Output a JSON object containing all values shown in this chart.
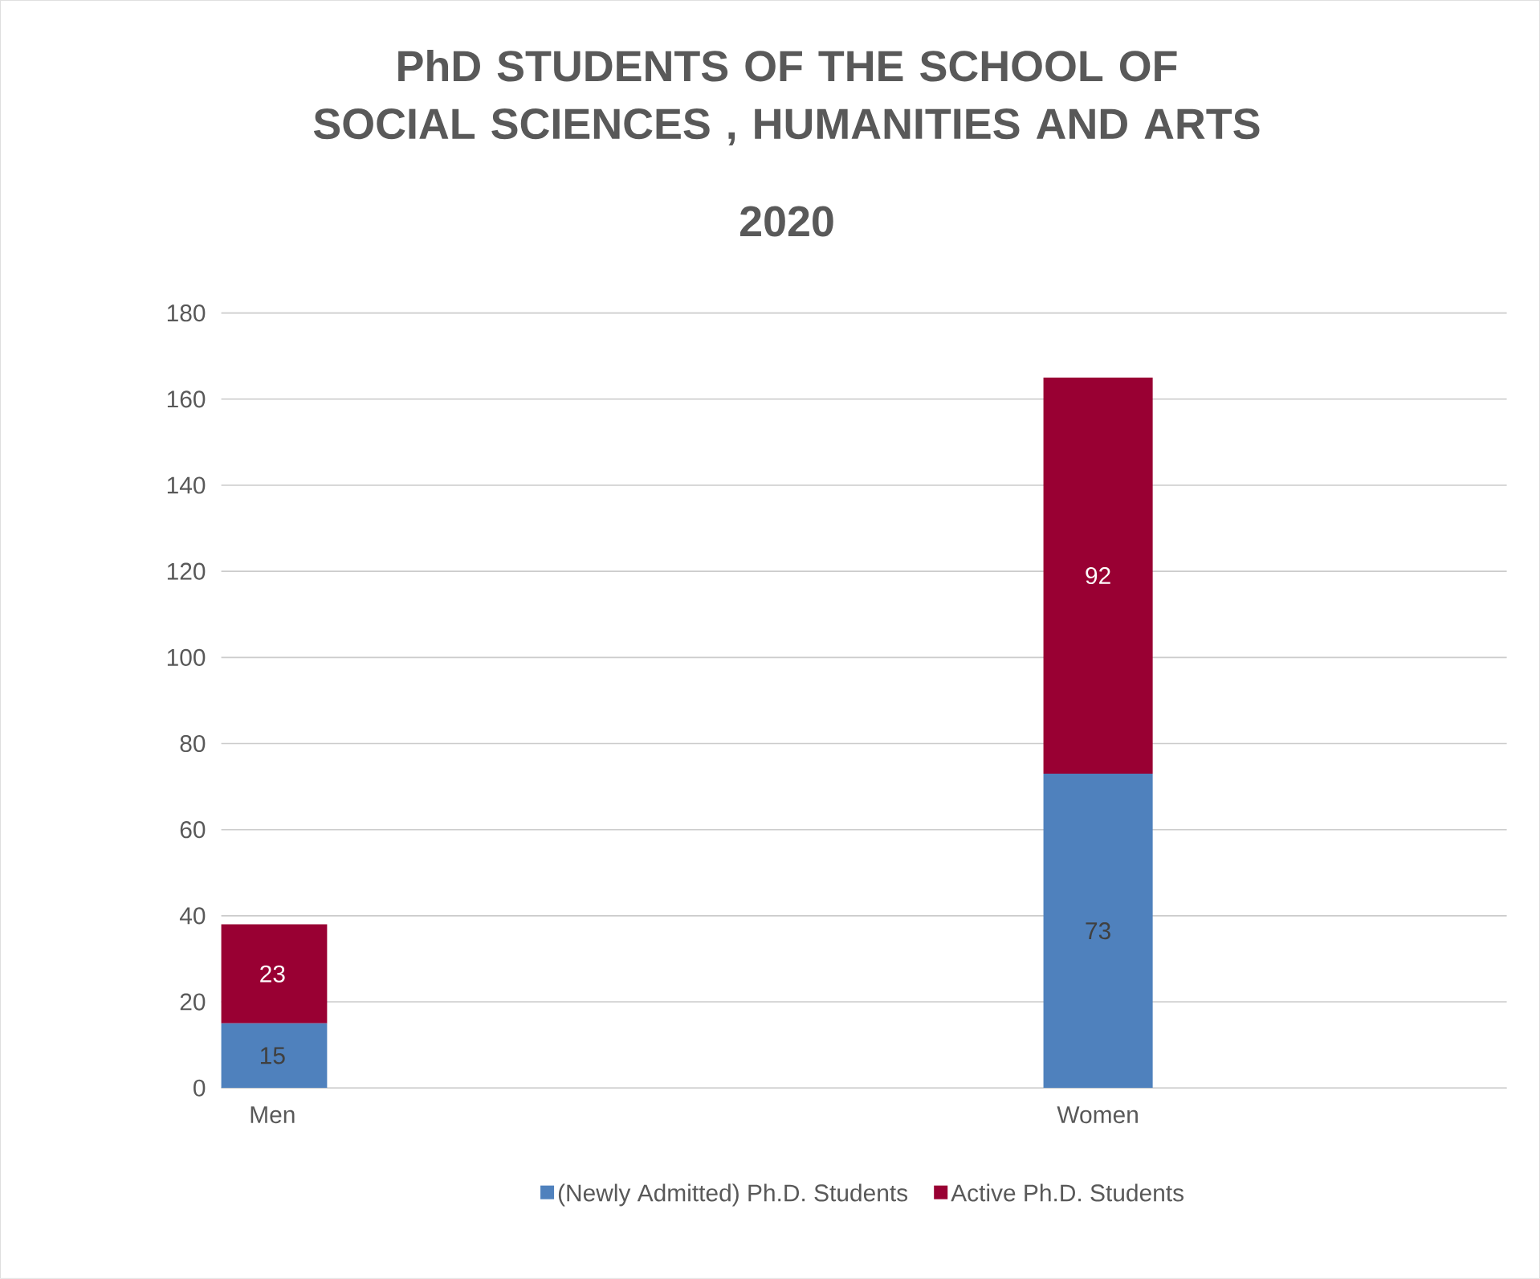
{
  "chart_data": {
    "type": "bar",
    "title": "PhD STUDENTS OF THE SCHOOL OF  SOCIAL SCIENCES , HUMANITIES AND ARTS",
    "subtitle": "2020",
    "categories": [
      "Men",
      "Women"
    ],
    "series": [
      {
        "name": "(Newly Admitted) Ph.D. Students",
        "color": "#4f81bd",
        "values": [
          15,
          73
        ]
      },
      {
        "name": "Active Ph.D. Students",
        "color": "#990033",
        "values": [
          23,
          92
        ]
      }
    ],
    "stacked": true,
    "data_labels": true,
    "ylim": [
      0,
      180
    ],
    "yticks": [
      0,
      20,
      40,
      60,
      80,
      100,
      120,
      140,
      160,
      180
    ],
    "grid": "y",
    "legend": "bottom"
  }
}
